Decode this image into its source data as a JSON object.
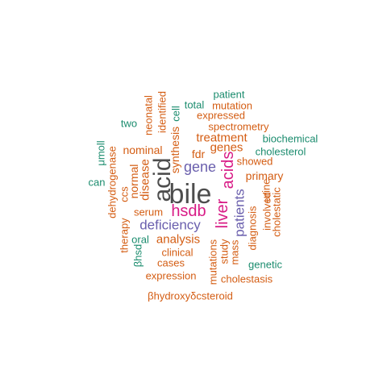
{
  "colors": {
    "gray": "#4d4d4d",
    "magenta": "#d81b86",
    "purple": "#6a5fad",
    "orange": "#d45d13",
    "teal": "#1b8c6e"
  },
  "words": [
    {
      "text": "bile",
      "color": "gray"
    },
    {
      "text": "acid",
      "color": "gray"
    },
    {
      "text": "hsdb",
      "color": "magenta"
    },
    {
      "text": "liver",
      "color": "magenta"
    },
    {
      "text": "acids",
      "color": "magenta"
    },
    {
      "text": "gene",
      "color": "purple"
    },
    {
      "text": "deficiency",
      "color": "purple"
    },
    {
      "text": "patients",
      "color": "purple"
    },
    {
      "text": "analysis",
      "color": "orange"
    },
    {
      "text": "disease",
      "color": "orange"
    },
    {
      "text": "treatment",
      "color": "orange"
    },
    {
      "text": "genes",
      "color": "orange"
    },
    {
      "text": "nominal",
      "color": "orange"
    },
    {
      "text": "synthesis",
      "color": "orange"
    },
    {
      "text": "normal",
      "color": "orange"
    },
    {
      "text": "primary",
      "color": "orange"
    },
    {
      "text": "spectrometry",
      "color": "orange"
    },
    {
      "text": "expressed",
      "color": "orange"
    },
    {
      "text": "mutation",
      "color": "orange"
    },
    {
      "text": "identified",
      "color": "orange"
    },
    {
      "text": "neonatal",
      "color": "orange"
    },
    {
      "text": "fdr",
      "color": "orange"
    },
    {
      "text": "showed",
      "color": "orange"
    },
    {
      "text": "serum",
      "color": "orange"
    },
    {
      "text": "dehydrogenase",
      "color": "orange"
    },
    {
      "text": "ccs",
      "color": "orange"
    },
    {
      "text": "therapy",
      "color": "orange"
    },
    {
      "text": "clinical",
      "color": "orange"
    },
    {
      "text": "cases",
      "color": "orange"
    },
    {
      "text": "expression",
      "color": "orange"
    },
    {
      "text": "βhydroxyδcsteroid",
      "color": "orange"
    },
    {
      "text": "mutations",
      "color": "orange"
    },
    {
      "text": "study",
      "color": "orange"
    },
    {
      "text": "mass",
      "color": "orange"
    },
    {
      "text": "diagnosis",
      "color": "orange"
    },
    {
      "text": "involved",
      "color": "orange"
    },
    {
      "text": "urine",
      "color": "orange"
    },
    {
      "text": "cholestatic",
      "color": "orange"
    },
    {
      "text": "cholestasis",
      "color": "orange"
    },
    {
      "text": "patient",
      "color": "teal"
    },
    {
      "text": "total",
      "color": "teal"
    },
    {
      "text": "cell",
      "color": "teal"
    },
    {
      "text": "two",
      "color": "teal"
    },
    {
      "text": "biochemical",
      "color": "teal"
    },
    {
      "text": "cholesterol",
      "color": "teal"
    },
    {
      "text": "μmoll",
      "color": "teal"
    },
    {
      "text": "can",
      "color": "teal"
    },
    {
      "text": "oral",
      "color": "teal"
    },
    {
      "text": "βhsd",
      "color": "teal"
    },
    {
      "text": "genetic",
      "color": "teal"
    }
  ]
}
